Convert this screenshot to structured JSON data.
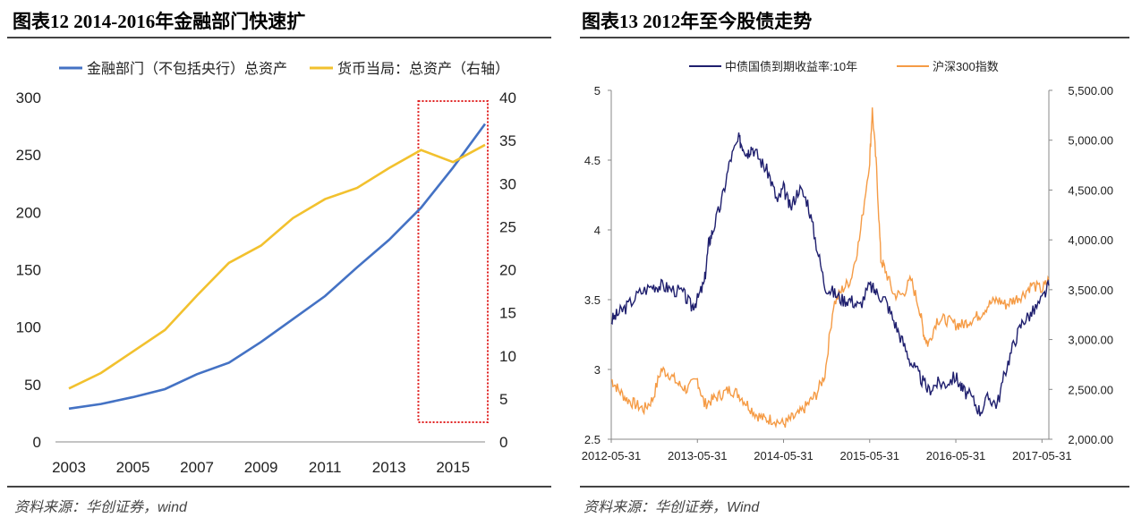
{
  "left_figure": {
    "title": "图表12   2014-2016年金融部门快速扩",
    "source": "资料来源：华创证券，wind"
  },
  "right_figure": {
    "title": "图表13   2012年至今股债走势",
    "source": "资料来源：华创证券，Wind"
  },
  "chart_data": [
    {
      "type": "line",
      "title": "",
      "categories": [
        "2003",
        "2004",
        "2005",
        "2006",
        "2007",
        "2008",
        "2009",
        "2010",
        "2011",
        "2012",
        "2013",
        "2014",
        "2015",
        "2016"
      ],
      "x_tick_labels": [
        "2003",
        "2005",
        "2007",
        "2009",
        "2011",
        "2013",
        "2015"
      ],
      "series": [
        {
          "name": "金融部门（不包括央行）总资产",
          "axis": "left",
          "color": "#4472C4",
          "values": [
            29,
            33,
            39,
            46,
            59,
            69,
            87,
            107,
            127,
            152,
            176,
            204,
            239,
            277
          ]
        },
        {
          "name": "货币当局：总资产（右轴）",
          "axis": "right",
          "color": "#F2C12E",
          "values": [
            6.2,
            8.0,
            10.5,
            13.0,
            17.0,
            20.8,
            22.8,
            26.0,
            28.2,
            29.5,
            31.8,
            33.9,
            32.5,
            34.5
          ]
        }
      ],
      "y_left": {
        "min": 0,
        "max": 300,
        "ticks": [
          0,
          50,
          100,
          150,
          200,
          250,
          300
        ]
      },
      "y_right": {
        "min": 0,
        "max": 40,
        "ticks": [
          0,
          5,
          10,
          15,
          20,
          25,
          30,
          35,
          40
        ]
      },
      "highlight": {
        "from": "2014",
        "to": "2016",
        "style": "red dashed box"
      },
      "legend_position": "top"
    },
    {
      "type": "line",
      "title": "",
      "x_tick_labels": [
        "2012-05-31",
        "2013-05-31",
        "2014-05-31",
        "2015-05-31",
        "2016-05-31",
        "2017-05-31"
      ],
      "series": [
        {
          "name": "中债国债到期收益率:10年",
          "axis": "left",
          "color": "#1F1F6E",
          "x": [
            2012.42,
            2012.5,
            2012.6,
            2012.75,
            2012.9,
            2013.0,
            2013.1,
            2013.25,
            2013.35,
            2013.42,
            2013.5,
            2013.55,
            2013.6,
            2013.7,
            2013.8,
            2013.9,
            2013.95,
            2014.0,
            2014.05,
            2014.15,
            2014.25,
            2014.35,
            2014.42,
            2014.5,
            2014.6,
            2014.7,
            2014.8,
            2014.9,
            2015.0,
            2015.1,
            2015.2,
            2015.3,
            2015.42,
            2015.5,
            2015.6,
            2015.7,
            2015.8,
            2015.9,
            2016.0,
            2016.1,
            2016.2,
            2016.3,
            2016.42,
            2016.5,
            2016.6,
            2016.7,
            2016.8,
            2016.9,
            2017.0,
            2017.1,
            2017.2,
            2017.3,
            2017.42,
            2017.5
          ],
          "values": [
            3.35,
            3.4,
            3.45,
            3.55,
            3.6,
            3.6,
            3.58,
            3.55,
            3.45,
            3.5,
            3.62,
            3.9,
            4.0,
            4.2,
            4.5,
            4.65,
            4.6,
            4.55,
            4.6,
            4.5,
            4.4,
            4.2,
            4.3,
            4.15,
            4.3,
            4.2,
            3.9,
            3.6,
            3.55,
            3.5,
            3.5,
            3.45,
            3.6,
            3.55,
            3.5,
            3.35,
            3.2,
            3.05,
            2.95,
            2.85,
            2.9,
            2.9,
            2.95,
            2.85,
            2.8,
            2.7,
            2.8,
            2.75,
            3.0,
            3.2,
            3.35,
            3.4,
            3.5,
            3.6
          ]
        },
        {
          "name": "沪深300指数",
          "axis": "right",
          "color": "#F59B45",
          "x": [
            2012.42,
            2012.5,
            2012.6,
            2012.7,
            2012.8,
            2012.9,
            2013.0,
            2013.1,
            2013.2,
            2013.3,
            2013.42,
            2013.5,
            2013.6,
            2013.7,
            2013.8,
            2013.9,
            2014.0,
            2014.1,
            2014.2,
            2014.3,
            2014.42,
            2014.5,
            2014.6,
            2014.7,
            2014.8,
            2014.9,
            2015.0,
            2015.1,
            2015.2,
            2015.3,
            2015.42,
            2015.45,
            2015.5,
            2015.55,
            2015.6,
            2015.7,
            2015.8,
            2015.9,
            2016.0,
            2016.05,
            2016.1,
            2016.2,
            2016.3,
            2016.42,
            2016.5,
            2016.6,
            2016.7,
            2016.8,
            2016.9,
            2017.0,
            2017.1,
            2017.2,
            2017.3,
            2017.42,
            2017.5
          ],
          "values": [
            2600,
            2500,
            2400,
            2350,
            2300,
            2400,
            2700,
            2650,
            2550,
            2500,
            2600,
            2350,
            2400,
            2450,
            2500,
            2450,
            2350,
            2250,
            2200,
            2200,
            2150,
            2200,
            2250,
            2350,
            2450,
            2650,
            3350,
            3500,
            3600,
            4000,
            4800,
            5300,
            4700,
            3800,
            3700,
            3450,
            3450,
            3600,
            3300,
            3050,
            2950,
            3200,
            3200,
            3150,
            3150,
            3200,
            3250,
            3350,
            3400,
            3350,
            3400,
            3450,
            3550,
            3500,
            3600
          ]
        }
      ],
      "y_left": {
        "min": 2.5,
        "max": 5,
        "ticks": [
          2.5,
          3,
          3.5,
          4,
          4.5,
          5
        ],
        "tick_labels": [
          "2.5",
          "3",
          "3.5",
          "4",
          "4.5",
          "5"
        ]
      },
      "y_right": {
        "min": 2000,
        "max": 5500,
        "ticks": [
          2000,
          2500,
          3000,
          3500,
          4000,
          4500,
          5000,
          5500
        ],
        "tick_labels": [
          "2,000.00",
          "2,500.00",
          "3,000.00",
          "3,500.00",
          "4,000.00",
          "4,500.00",
          "5,000.00",
          "5,500.00"
        ]
      },
      "x_range": [
        2012.42,
        2017.5
      ],
      "legend_position": "top"
    }
  ]
}
